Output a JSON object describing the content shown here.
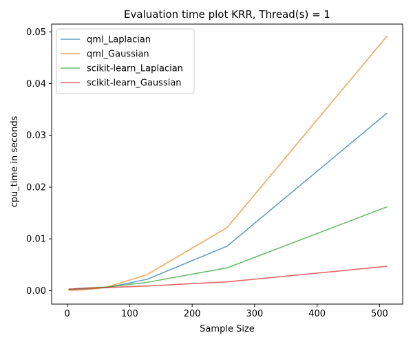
{
  "chart_data": {
    "type": "line",
    "title": "Evaluation time plot KRR, Thread(s) = 1",
    "xlabel": "Sample Size",
    "ylabel": "cpu_time in seconds",
    "xlim": [
      -25,
      537
    ],
    "ylim": [
      -0.0026,
      0.0515
    ],
    "xticks": [
      0,
      100,
      200,
      300,
      400,
      500
    ],
    "yticks": [
      0.0,
      0.01,
      0.02,
      0.03,
      0.04,
      0.05
    ],
    "ytick_labels": [
      "0.00",
      "0.01",
      "0.02",
      "0.03",
      "0.04",
      "0.05"
    ],
    "grid": false,
    "legend_position": "top-left",
    "x": [
      2,
      4,
      8,
      16,
      32,
      64,
      128,
      256,
      512
    ],
    "series": [
      {
        "name": "qml_Laplacian",
        "color": "#1f77b4",
        "values": [
          0.0001,
          0.0001,
          0.0001,
          0.0002,
          0.0003,
          0.0006,
          0.0022,
          0.0086,
          0.0343
        ]
      },
      {
        "name": "qml_Gaussian",
        "color": "#ff7f0e",
        "values": [
          0.0001,
          0.0001,
          0.0001,
          0.0001,
          0.0002,
          0.0007,
          0.0031,
          0.0122,
          0.0492
        ]
      },
      {
        "name": "scikit-learn_Laplacian",
        "color": "#2ca02c",
        "values": [
          0.0003,
          0.0003,
          0.0003,
          0.0004,
          0.0005,
          0.0007,
          0.0016,
          0.0044,
          0.0162
        ]
      },
      {
        "name": "scikit-learn_Gaussian",
        "color": "#d62728",
        "values": [
          0.0003,
          0.0003,
          0.0003,
          0.0004,
          0.0005,
          0.0006,
          0.0009,
          0.0017,
          0.0047
        ]
      }
    ]
  }
}
